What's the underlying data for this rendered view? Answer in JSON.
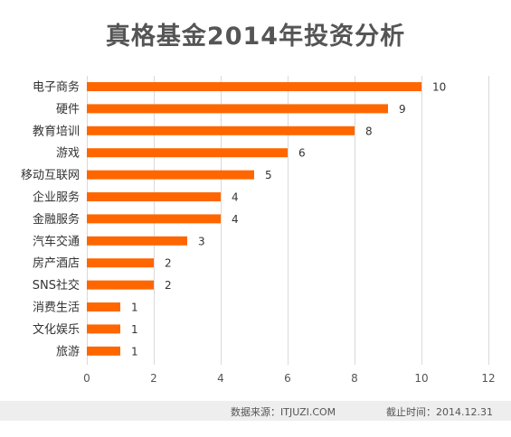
{
  "chart_data": {
    "type": "bar",
    "orientation": "horizontal",
    "title": "真格基金2014年投资分析",
    "categories": [
      "电子商务",
      "硬件",
      "教育培训",
      "游戏",
      "移动互联网",
      "企业服务",
      "金融服务",
      "汽车交通",
      "房产酒店",
      "SNS社交",
      "消费生活",
      "文化娱乐",
      "旅游"
    ],
    "values": [
      10,
      9,
      8,
      6,
      5,
      4,
      4,
      3,
      2,
      2,
      1,
      1,
      1
    ],
    "xlim": [
      0,
      12
    ],
    "xticks": [
      "0",
      "2",
      "4",
      "6",
      "8",
      "10",
      "12"
    ],
    "grid": true,
    "data_labels": true,
    "bar_color": "#ff6600",
    "grid_color": "#d9d9d9"
  },
  "footer": {
    "source": "数据来源：ITJUZI.COM",
    "cutoff": "截止时间：2014.12.31"
  }
}
